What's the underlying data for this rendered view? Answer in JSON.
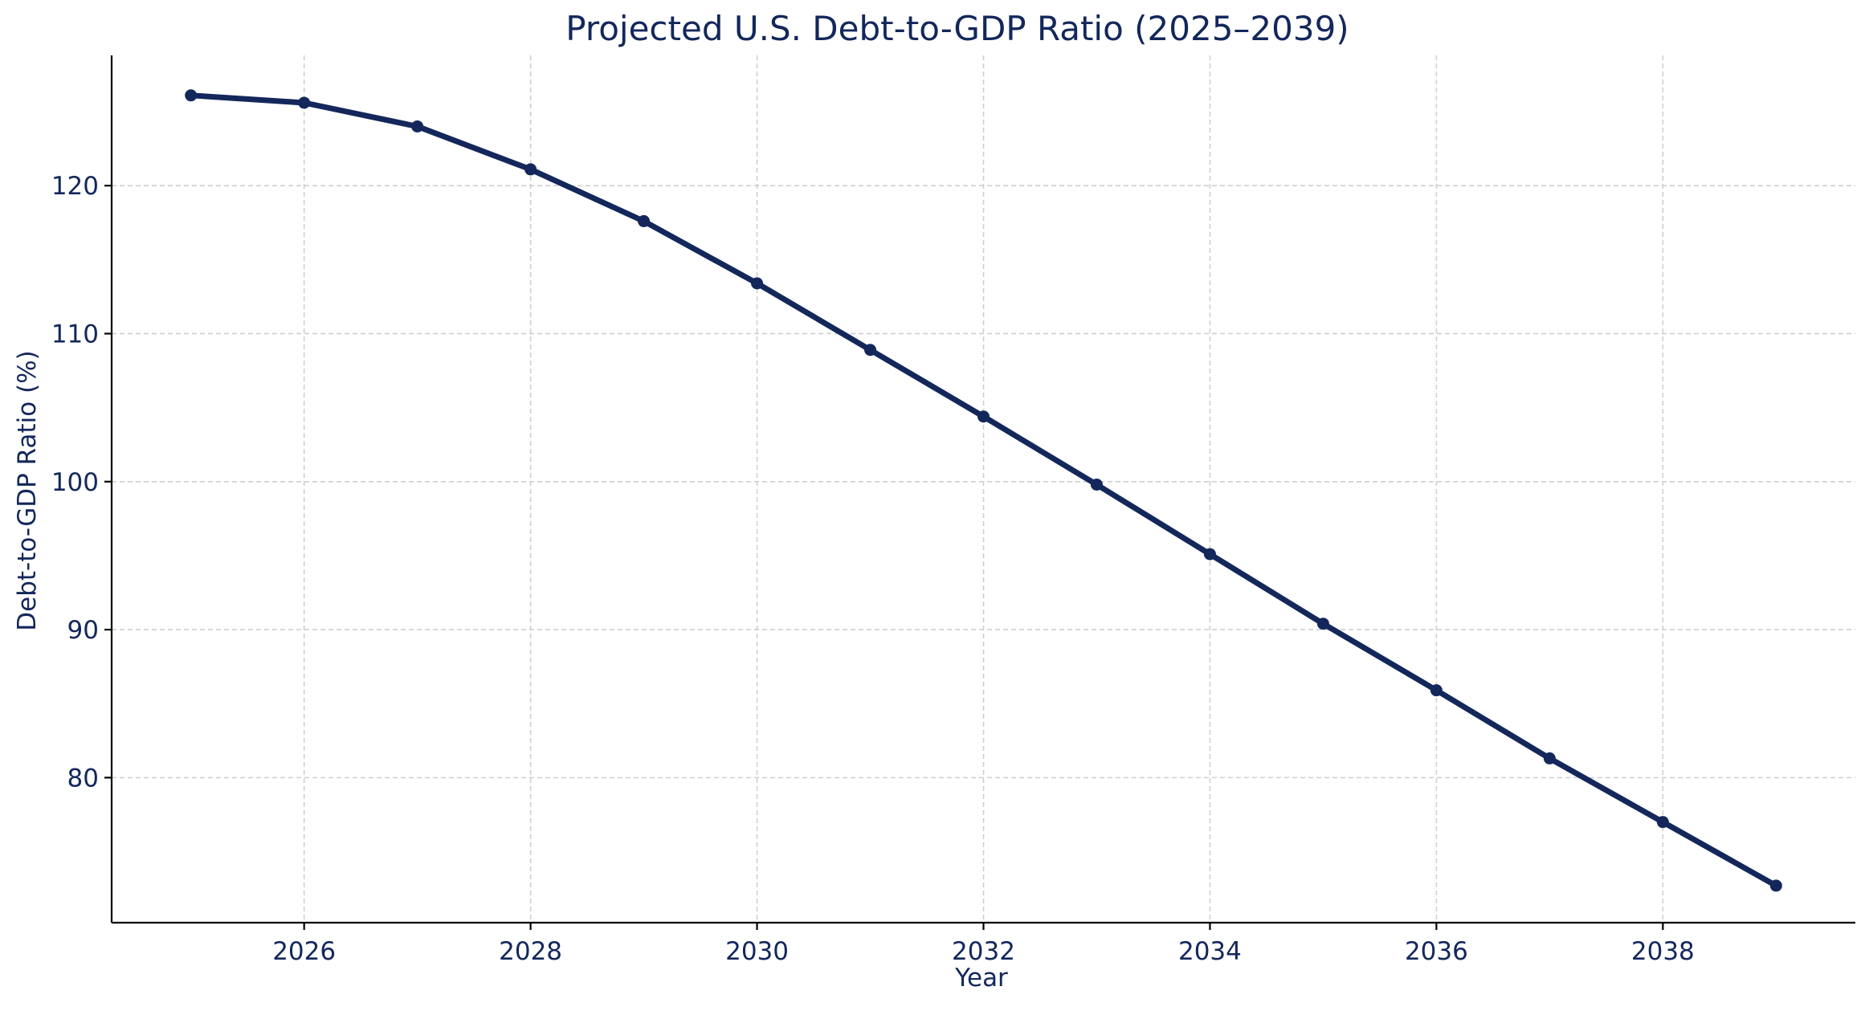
{
  "chart_data": {
    "type": "line",
    "title": "Projected U.S. Debt-to-GDP Ratio (2025–2039)",
    "xlabel": "Year",
    "ylabel": "Debt-to-GDP Ratio (%)",
    "x": [
      2025,
      2026,
      2027,
      2028,
      2029,
      2030,
      2031,
      2032,
      2033,
      2034,
      2035,
      2036,
      2037,
      2038,
      2039
    ],
    "series": [
      {
        "values": [
          126.1,
          125.6,
          124.0,
          121.1,
          117.6,
          113.4,
          108.9,
          104.4,
          99.8,
          95.1,
          90.4,
          85.9,
          81.3,
          77.0,
          72.7
        ],
        "color": "#13275b",
        "marker": "circle"
      }
    ],
    "xlim": [
      2024.3,
      2039.7
    ],
    "ylim": [
      70.2,
      128.8
    ],
    "xticks": [
      2026,
      2028,
      2030,
      2032,
      2034,
      2036,
      2038
    ],
    "yticks": [
      80,
      90,
      100,
      110,
      120
    ],
    "grid": true,
    "text_color": "#13275b",
    "spines": [
      "left",
      "bottom"
    ]
  }
}
